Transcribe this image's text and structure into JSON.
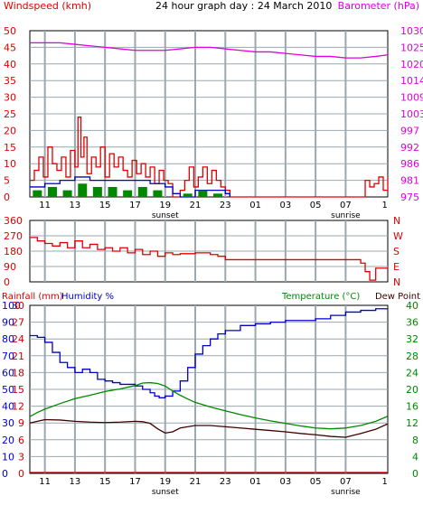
{
  "title": "24 hour graph day : 24 March 2010",
  "colors": {
    "wind_avg": "#e00000",
    "wind_gust": "#0000cc",
    "wind_bar": "#008800",
    "barometer": "#e000e0",
    "winddir": "#e00000",
    "rain": "#cc0000",
    "humidity": "#0000cc",
    "temperature": "#008800",
    "dewpoint": "#400000",
    "grid": "#9aa8b0",
    "frame": "#000000"
  },
  "time_ticks": [
    "11",
    "13",
    "15",
    "17",
    "19",
    "21",
    "23",
    "01",
    "03",
    "05",
    "07",
    "1"
  ],
  "events": [
    "sunset",
    "sunrise"
  ],
  "chart_data": [
    {
      "type": "bar",
      "id": "wind",
      "title": "24 hour graph day : 24 March 2010",
      "ylabel_left": "Windspeed (kmh)",
      "ylabel_right": "Barometer (hPa)",
      "y_left_ticks": [
        "50",
        "45",
        "40",
        "35",
        "30",
        "25",
        "20",
        "15",
        "10",
        "5",
        "0"
      ],
      "y_right_ticks": [
        "1030",
        "1025",
        "1020",
        "1014",
        "1009",
        "1003",
        "997",
        "992",
        "986",
        "981",
        "975"
      ],
      "ylim_left": [
        0,
        50
      ],
      "ylim_right": [
        975,
        1030
      ],
      "hour_from": 10,
      "hour_to": 33.8,
      "series": [
        {
          "name": "Barometer",
          "axis": "right",
          "color": "#e000e0",
          "x": [
            10,
            11,
            12,
            13,
            14,
            15,
            16,
            17,
            18,
            19,
            20,
            21,
            22,
            23,
            24,
            25,
            26,
            27,
            28,
            29,
            30,
            31,
            32,
            33,
            33.8
          ],
          "values": [
            1026,
            1026,
            1026,
            1025.5,
            1025,
            1024.5,
            1024,
            1023.5,
            1023.5,
            1023.5,
            1024,
            1024.5,
            1024.5,
            1024,
            1023.5,
            1023,
            1023,
            1022.5,
            1022,
            1021.5,
            1021.5,
            1021,
            1021,
            1021.5,
            1022
          ]
        },
        {
          "name": "Wind gust",
          "axis": "left",
          "color": "#e00000",
          "x": [
            10,
            10.3,
            10.6,
            10.9,
            11.2,
            11.5,
            11.8,
            12.1,
            12.4,
            12.7,
            13,
            13.2,
            13.4,
            13.6,
            13.8,
            14.1,
            14.4,
            14.7,
            15,
            15.3,
            15.6,
            15.9,
            16.2,
            16.5,
            16.8,
            17.1,
            17.4,
            17.7,
            18,
            18.3,
            18.6,
            18.9,
            19.2,
            19.5,
            20,
            20.3,
            20.6,
            20.9,
            21.2,
            21.5,
            21.8,
            22.1,
            22.4,
            22.7,
            23,
            23.3,
            32,
            32.3,
            32.6,
            32.9,
            33.2,
            33.5,
            33.8
          ],
          "values": [
            5,
            8,
            12,
            6,
            15,
            10,
            8,
            12,
            6,
            14,
            9,
            24,
            12,
            18,
            7,
            12,
            9,
            15,
            6,
            13,
            9,
            12,
            8,
            6,
            11,
            7,
            10,
            6,
            9,
            4,
            8,
            5,
            4,
            0,
            2,
            5,
            9,
            3,
            6,
            9,
            4,
            8,
            5,
            3,
            2,
            0,
            0,
            5,
            3,
            4,
            6,
            2,
            6
          ]
        },
        {
          "name": "Wind avg",
          "axis": "left",
          "color": "#0000cc",
          "x": [
            10,
            11,
            12,
            13,
            14,
            15,
            16,
            17,
            18,
            19,
            19.5,
            20,
            21,
            22,
            23,
            23.3
          ],
          "values": [
            3,
            4,
            5,
            6,
            5,
            5,
            5,
            5,
            4,
            3,
            1,
            0,
            2,
            2,
            1,
            0
          ]
        },
        {
          "name": "Wind bar",
          "axis": "left",
          "color": "#008800",
          "x": [
            10.5,
            11.5,
            12.5,
            13.5,
            14.5,
            15.5,
            16.5,
            17.5,
            18.5,
            20.5,
            21.5,
            22.5
          ],
          "values": [
            2,
            3,
            2,
            4,
            3,
            3,
            2,
            3,
            2,
            1,
            2,
            1
          ]
        }
      ]
    },
    {
      "type": "line",
      "id": "winddir",
      "y_left_ticks": [
        "360",
        "270",
        "180",
        "90",
        "0"
      ],
      "y_right_ticks": [
        "N",
        "W",
        "S",
        "E",
        "N"
      ],
      "ylim_left": [
        0,
        360
      ],
      "hour_from": 10,
      "hour_to": 33.8,
      "series": [
        {
          "name": "Wind direction",
          "axis": "left",
          "color": "#e00000",
          "x": [
            10,
            10.5,
            11,
            11.5,
            12,
            12.5,
            13,
            13.5,
            14,
            14.5,
            15,
            15.5,
            16,
            16.5,
            17,
            17.5,
            18,
            18.5,
            19,
            19.5,
            20,
            21,
            22,
            22.5,
            23,
            24,
            27,
            30,
            31.5,
            32,
            32.3,
            32.6,
            33,
            33.8
          ],
          "values": [
            260,
            240,
            225,
            210,
            230,
            200,
            240,
            200,
            220,
            190,
            200,
            180,
            200,
            170,
            190,
            160,
            180,
            150,
            170,
            160,
            165,
            170,
            160,
            150,
            130,
            130,
            130,
            130,
            130,
            110,
            60,
            10,
            80,
            75
          ]
        }
      ]
    },
    {
      "type": "line",
      "id": "climate",
      "ylabel_left": "Rainfall (mm)",
      "ylabel_left2": "Humidity %",
      "ylabel_right": "Temperature (°C)",
      "ylabel_right2": "Dew Point",
      "y_rain_ticks": [
        "30",
        "27",
        "24",
        "21",
        "18",
        "15",
        "12",
        "9",
        "6",
        "3",
        "0"
      ],
      "y_hum_ticks": [
        "100",
        "90",
        "80",
        "70",
        "60",
        "50",
        "40",
        "30",
        "20",
        "10",
        "0"
      ],
      "y_temp_ticks": [
        "40",
        "36",
        "32",
        "28",
        "24",
        "20",
        "16",
        "12",
        "8",
        "4",
        "0"
      ],
      "ylim_humidity": [
        0,
        100
      ],
      "ylim_temperature": [
        0,
        40
      ],
      "hour_from": 10,
      "hour_to": 33.8,
      "series": [
        {
          "name": "Rainfall",
          "axis": "rain",
          "color": "#cc0000",
          "x": [
            10,
            33.8
          ],
          "values": [
            0,
            0
          ]
        },
        {
          "name": "Humidity",
          "axis": "humidity",
          "color": "#0000cc",
          "x": [
            10,
            10.5,
            11,
            11.5,
            12,
            12.5,
            13,
            13.5,
            14,
            14.5,
            15,
            15.5,
            16,
            16.5,
            17,
            17.5,
            18,
            18.3,
            18.6,
            19,
            19.5,
            20,
            20.5,
            21,
            21.5,
            22,
            22.5,
            23,
            24,
            25,
            26,
            27,
            28,
            29,
            30,
            31,
            32,
            33,
            33.8
          ],
          "values": [
            82,
            81,
            78,
            72,
            66,
            63,
            60,
            62,
            60,
            56,
            55,
            54,
            53,
            53,
            52,
            50,
            48,
            46,
            45,
            46,
            49,
            55,
            63,
            71,
            76,
            80,
            83,
            85,
            88,
            89,
            90,
            91,
            91,
            92,
            94,
            96,
            97,
            98,
            98
          ]
        },
        {
          "name": "Temperature",
          "axis": "temperature",
          "color": "#008800",
          "x": [
            10,
            10.5,
            11,
            12,
            13,
            14,
            15,
            16,
            17,
            17.5,
            18,
            18.5,
            19,
            19.5,
            20,
            20.5,
            21,
            22,
            23,
            24,
            25,
            26,
            27,
            28,
            29,
            30,
            31,
            32,
            33,
            33.8
          ],
          "values": [
            13.5,
            14.5,
            15.3,
            16.6,
            17.8,
            18.6,
            19.5,
            20.1,
            20.9,
            21.5,
            21.6,
            21.4,
            20.8,
            19.6,
            18.6,
            17.7,
            16.9,
            15.8,
            14.9,
            14,
            13.2,
            12.5,
            11.9,
            11.3,
            10.8,
            10.6,
            10.8,
            11.4,
            12.4,
            13.6
          ]
        },
        {
          "name": "Dew Point",
          "axis": "temperature",
          "color": "#400000",
          "x": [
            10,
            11,
            12,
            13,
            14,
            15,
            16,
            17,
            17.5,
            18,
            18.5,
            19,
            19.5,
            20,
            21,
            22,
            23,
            24,
            25,
            26,
            27,
            28,
            29,
            30,
            31,
            32,
            33,
            33.8
          ],
          "values": [
            12,
            12.8,
            12.7,
            12.4,
            12.2,
            12.1,
            12.2,
            12.4,
            12.3,
            11.9,
            10.6,
            9.6,
            9.9,
            10.8,
            11.4,
            11.4,
            11.1,
            10.8,
            10.5,
            10.2,
            9.9,
            9.5,
            9.2,
            8.8,
            8.6,
            9.5,
            10.5,
            11.8
          ]
        }
      ]
    }
  ]
}
